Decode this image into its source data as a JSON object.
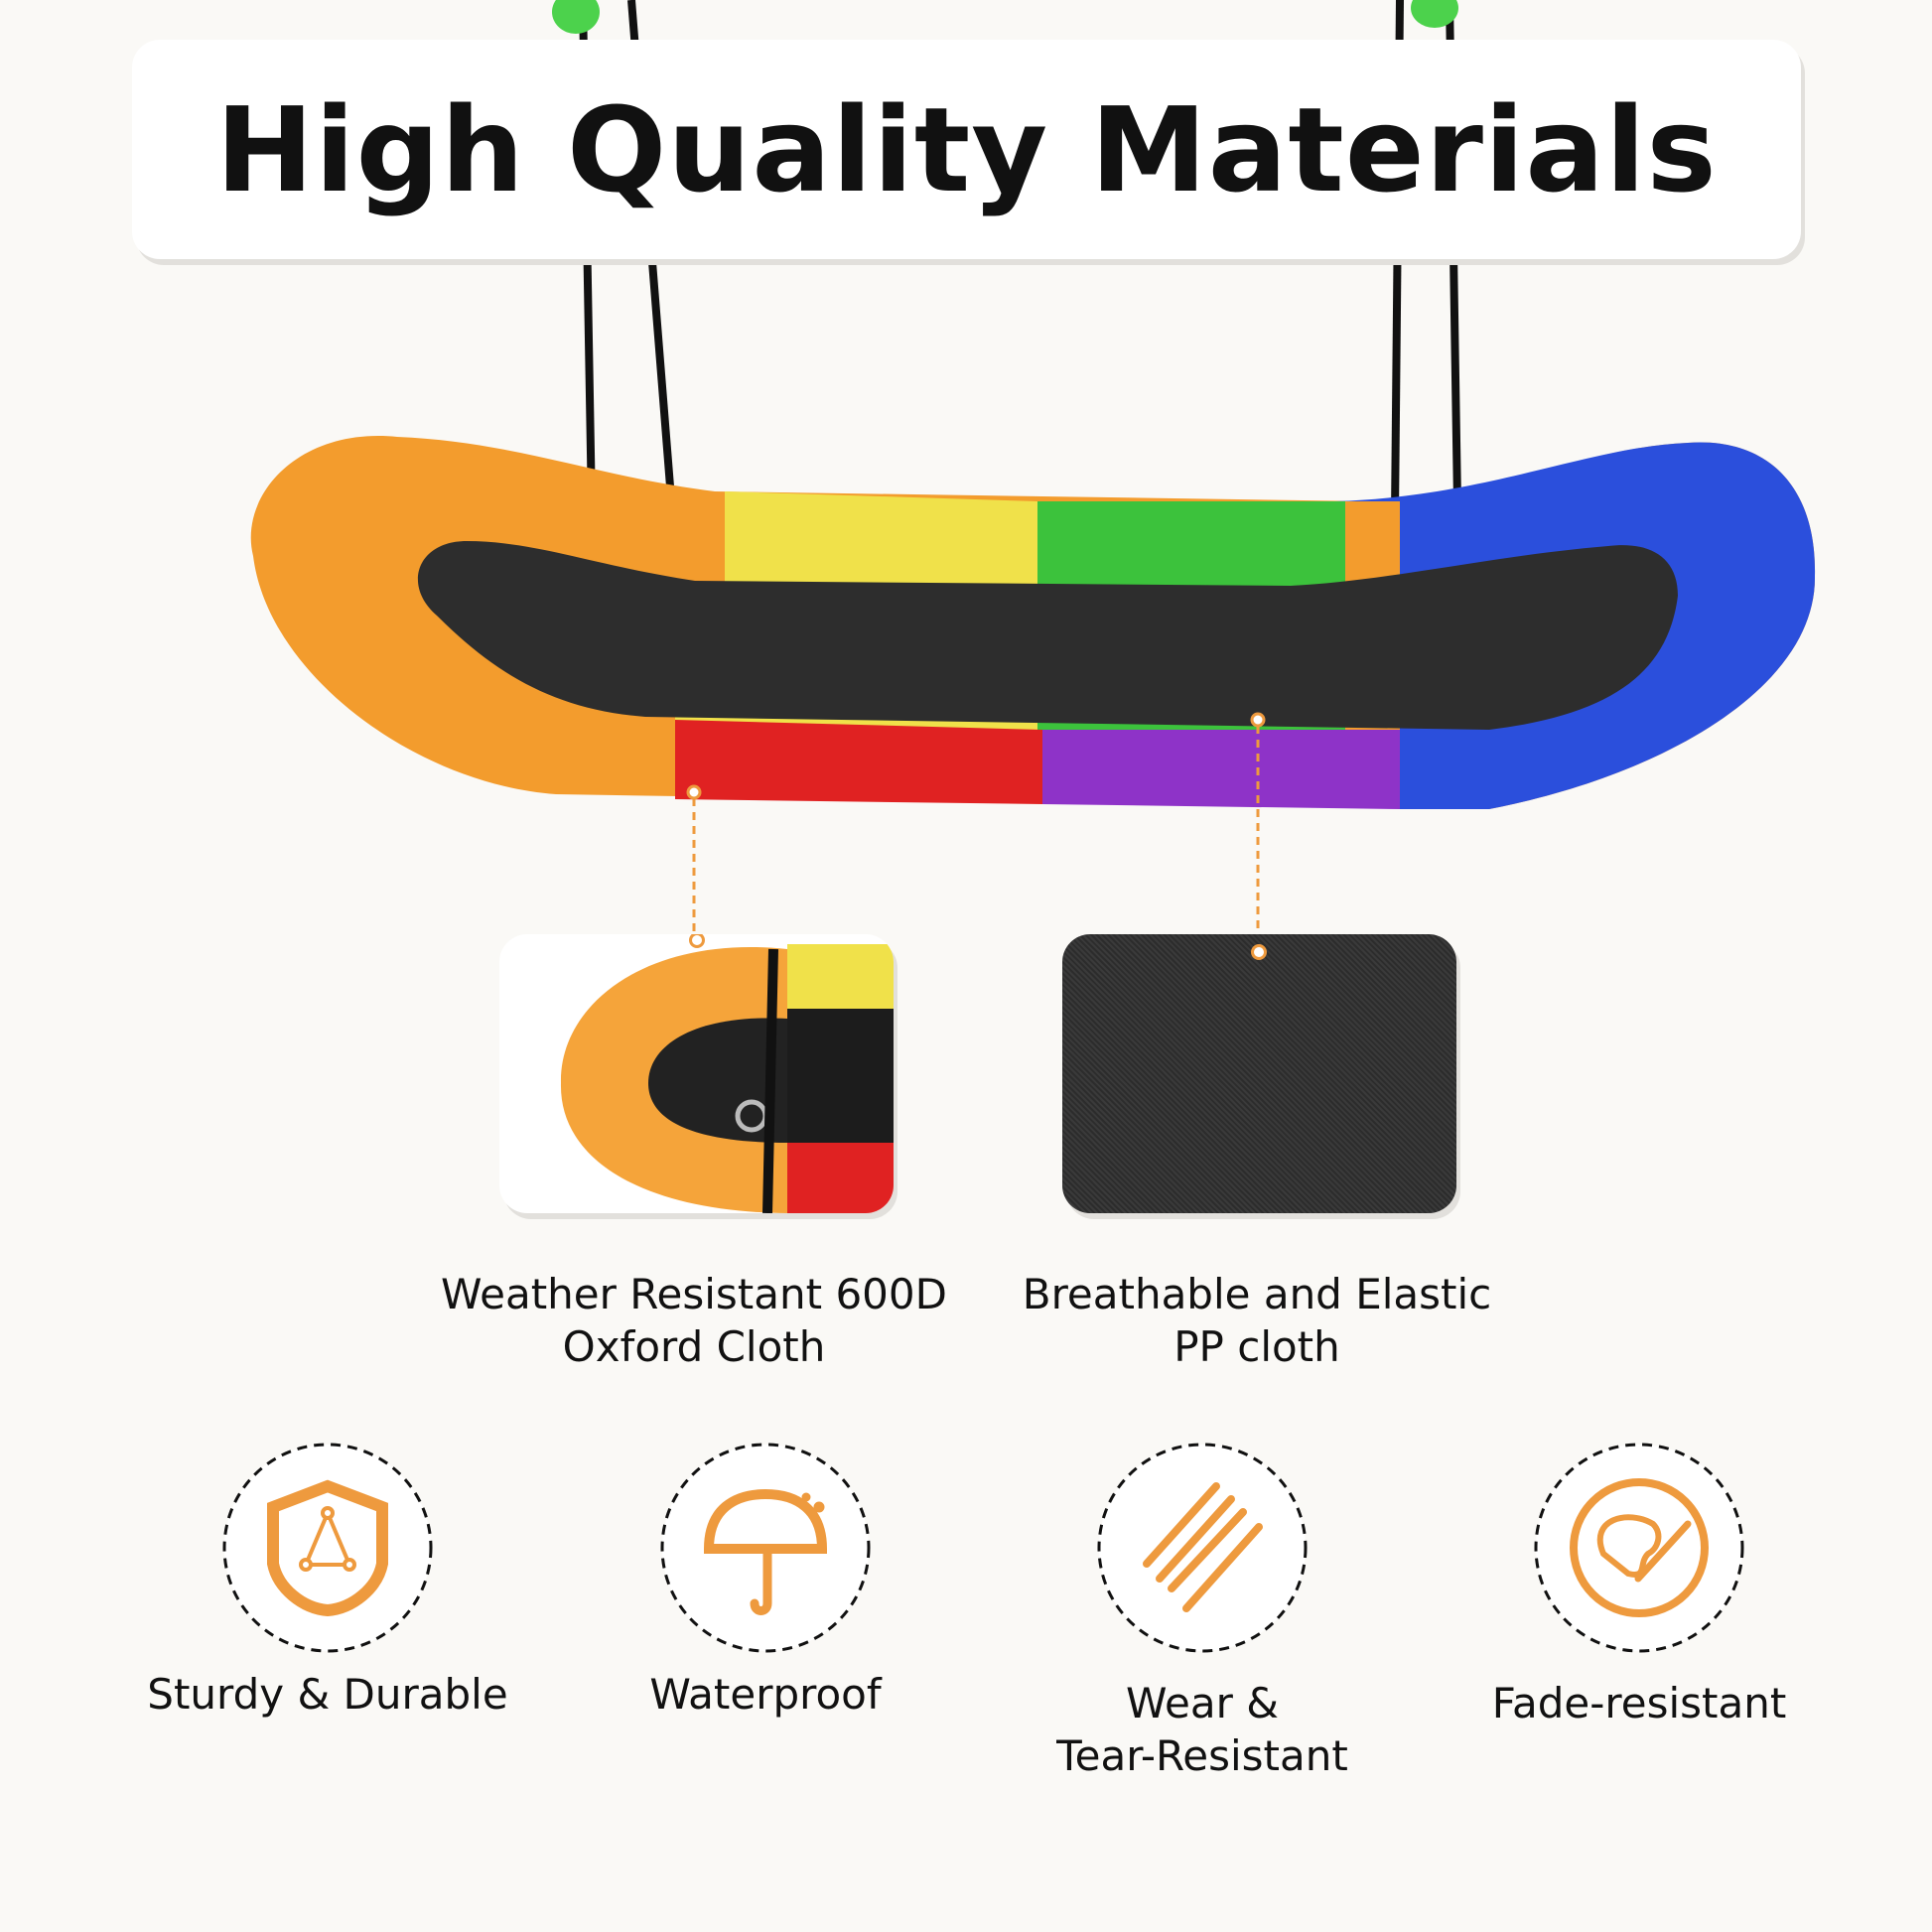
{
  "title": "High Quality Materials",
  "materials": [
    {
      "label_line1": "Weather Resistant 600D",
      "label_line2": "Oxford Cloth"
    },
    {
      "label_line1": "Breathable and Elastic",
      "label_line2": "PP cloth"
    }
  ],
  "features": [
    {
      "icon": "shield-icon",
      "label_line1": "Sturdy & Durable",
      "label_line2": ""
    },
    {
      "icon": "umbrella-icon",
      "label_line1": "Waterproof",
      "label_line2": ""
    },
    {
      "icon": "wear-lines-icon",
      "label_line1": "Wear &",
      "label_line2": "Tear-Resistant"
    },
    {
      "icon": "palette-icon",
      "label_line1": "Fade-resistant",
      "label_line2": ""
    }
  ],
  "colors": {
    "accent": "#ee9a3e",
    "background": "#faf9f6"
  }
}
